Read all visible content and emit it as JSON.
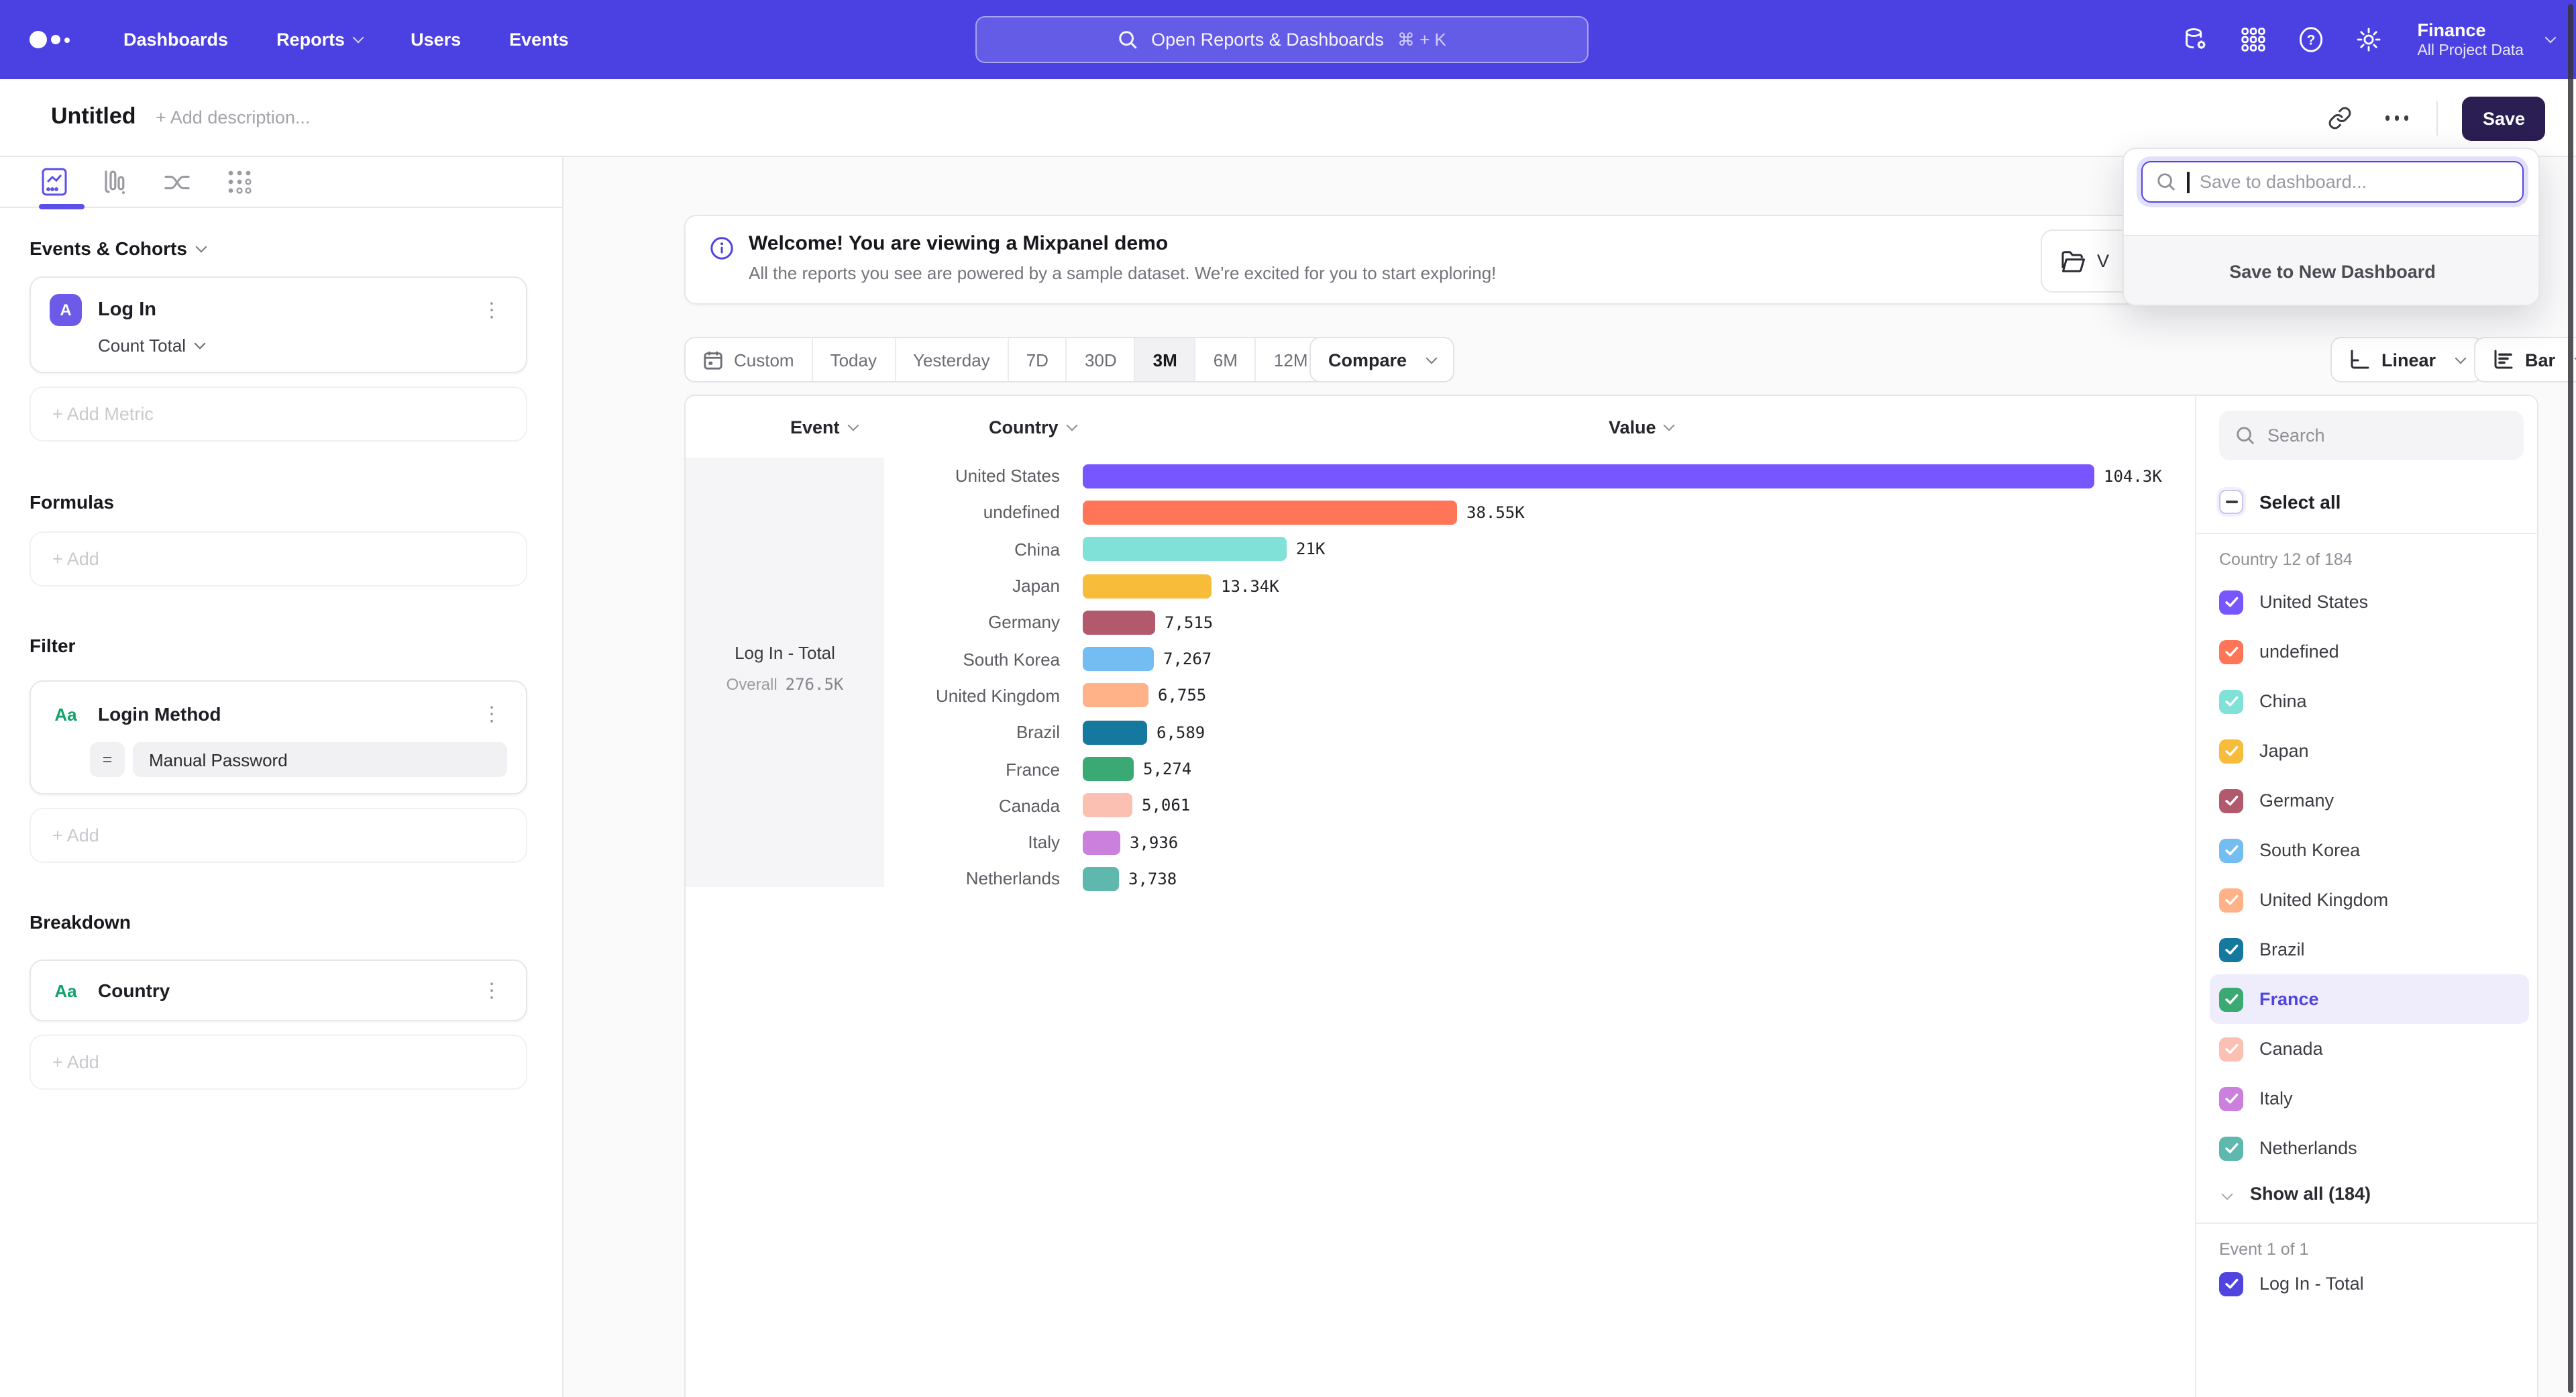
{
  "colors": {
    "accent": "#4F44E0",
    "nav_bg": "#4B40E2",
    "save_button_bg": "#2A1E52",
    "highlight_bg": "#EFEDFC"
  },
  "nav": {
    "items": [
      {
        "label": "Dashboards",
        "has_chevron": false
      },
      {
        "label": "Reports",
        "has_chevron": true
      },
      {
        "label": "Users",
        "has_chevron": false
      },
      {
        "label": "Events",
        "has_chevron": false
      }
    ],
    "search": {
      "placeholder": "Open Reports & Dashboards",
      "shortcut": "⌘ + K"
    },
    "project": {
      "name": "Finance",
      "subtitle": "All Project Data"
    }
  },
  "header": {
    "title": "Untitled",
    "description_placeholder": "+ Add description...",
    "save_label": "Save"
  },
  "save_popup": {
    "placeholder": "Save to dashboard...",
    "new_dashboard_label": "Save to New Dashboard"
  },
  "sidebar": {
    "events_header": "Events & Cohorts",
    "metric": {
      "badge": "A",
      "name": "Log In",
      "aggregation": "Count Total"
    },
    "add_metric_label": "+ Add Metric",
    "formulas_header": "Formulas",
    "filter_header": "Filter",
    "filter": {
      "badge": "Aa",
      "name": "Login Method",
      "operator": "=",
      "value": "Manual Password"
    },
    "breakdown_header": "Breakdown",
    "breakdown": {
      "badge": "Aa",
      "name": "Country"
    },
    "add_label": "+ Add"
  },
  "banner": {
    "title": "Welcome! You are viewing a Mixpanel demo",
    "subtitle": "All the reports you see are powered by a sample dataset. We're excited for you to start exploring!",
    "action_partial_label": "V"
  },
  "toolbar": {
    "ranges": [
      "Custom",
      "Today",
      "Yesterday",
      "7D",
      "30D",
      "3M",
      "6M",
      "12M"
    ],
    "selected_range": "3M",
    "compare_label": "Compare",
    "chart_scale_label": "Linear",
    "chart_type_label": "Bar"
  },
  "chart": {
    "columns": {
      "event": "Event",
      "country": "Country",
      "value": "Value"
    },
    "event_cell": {
      "name": "Log In - Total",
      "overall_label": "Overall",
      "overall_value": "276.5K"
    }
  },
  "chart_data": {
    "type": "bar",
    "orientation": "horizontal",
    "series_name": "Log In - Total",
    "categories": [
      "United States",
      "undefined",
      "China",
      "Japan",
      "Germany",
      "South Korea",
      "United Kingdom",
      "Brazil",
      "France",
      "Canada",
      "Italy",
      "Netherlands"
    ],
    "values": [
      104300,
      38550,
      21000,
      13340,
      7515,
      7267,
      6755,
      6589,
      5274,
      5061,
      3936,
      3738
    ],
    "value_labels": [
      "104.3K",
      "38.55K",
      "21K",
      "13.34K",
      "7,515",
      "7,267",
      "6,755",
      "6,589",
      "5,274",
      "5,061",
      "3,936",
      "3,738"
    ],
    "colors": [
      "#7856FF",
      "#FF7557",
      "#80E1D9",
      "#F8BC3B",
      "#B2596E",
      "#74BDF3",
      "#FFB188",
      "#15799F",
      "#3BA974",
      "#FBC0B2",
      "#CA80DC",
      "#5FB8AE"
    ],
    "xlim": [
      0,
      104300
    ],
    "overall_total": 276500,
    "legend_position": "right-panel",
    "grid": false
  },
  "right_panel": {
    "search_placeholder": "Search",
    "select_all_label": "Select all",
    "select_all_state": "indeterminate",
    "group_label": "Country 12 of 184",
    "countries": [
      {
        "name": "United States",
        "color": "#7856FF",
        "checked": true,
        "highlighted": false
      },
      {
        "name": "undefined",
        "color": "#FF7557",
        "checked": true,
        "highlighted": false
      },
      {
        "name": "China",
        "color": "#80E1D9",
        "checked": true,
        "highlighted": false
      },
      {
        "name": "Japan",
        "color": "#F8BC3B",
        "checked": true,
        "highlighted": false
      },
      {
        "name": "Germany",
        "color": "#B2596E",
        "checked": true,
        "highlighted": false
      },
      {
        "name": "South Korea",
        "color": "#74BDF3",
        "checked": true,
        "highlighted": false
      },
      {
        "name": "United Kingdom",
        "color": "#FFB188",
        "checked": true,
        "highlighted": false
      },
      {
        "name": "Brazil",
        "color": "#15799F",
        "checked": true,
        "highlighted": false
      },
      {
        "name": "France",
        "color": "#3BA974",
        "checked": true,
        "highlighted": true
      },
      {
        "name": "Canada",
        "color": "#FBC0B2",
        "checked": true,
        "highlighted": false
      },
      {
        "name": "Italy",
        "color": "#CA80DC",
        "checked": true,
        "highlighted": false
      },
      {
        "name": "Netherlands",
        "color": "#5FB8AE",
        "checked": true,
        "highlighted": false
      }
    ],
    "show_all_label": "Show all (184)",
    "event_group_label": "Event 1 of 1",
    "events": [
      {
        "name": "Log In - Total",
        "color": "#4F44E0",
        "checked": true
      }
    ]
  }
}
